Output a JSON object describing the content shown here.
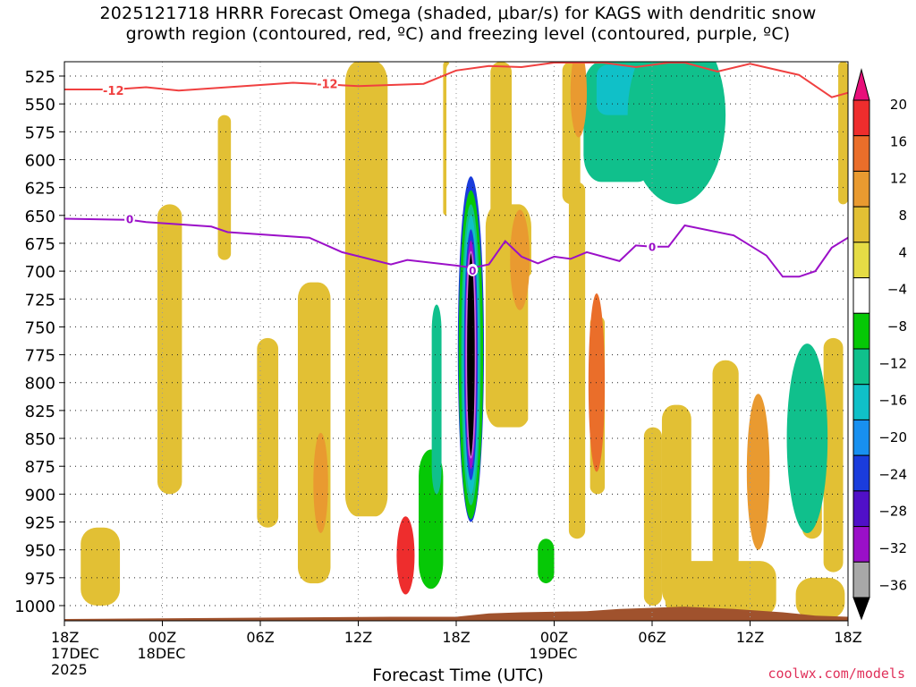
{
  "title_line1": "2025121718 HRRR Forecast Omega (shaded, μbar/s) for KAGS with dendritic snow",
  "title_line2": "growth region (contoured, red, ºC) and freezing level (contoured, purple, ºC)",
  "credit": "coolwx.com/models",
  "chart_data": {
    "type": "heatmap",
    "title": "2025121718 HRRR Forecast Omega (shaded, μbar/s) for KAGS",
    "xlabel": "Forecast Time (UTC)",
    "ylabel": "",
    "x_range_hours": [
      0,
      48
    ],
    "ylim": [
      1015,
      512
    ],
    "y_ticks": [
      525,
      550,
      575,
      600,
      625,
      650,
      675,
      700,
      725,
      750,
      775,
      800,
      825,
      850,
      875,
      900,
      925,
      950,
      975,
      1000
    ],
    "x_ticks": [
      {
        "hour": 0,
        "label": "18Z",
        "label2": "17DEC",
        "label3": "2025"
      },
      {
        "hour": 6,
        "label": "00Z",
        "label2": "18DEC"
      },
      {
        "hour": 12,
        "label": "06Z"
      },
      {
        "hour": 18,
        "label": "12Z"
      },
      {
        "hour": 24,
        "label": "18Z"
      },
      {
        "hour": 30,
        "label": "00Z",
        "label2": "19DEC"
      },
      {
        "hour": 36,
        "label": "06Z"
      },
      {
        "hour": 42,
        "label": "12Z"
      },
      {
        "hour": 48,
        "label": "18Z"
      }
    ],
    "colorbar": {
      "tick_labels": [
        "20",
        "16",
        "12",
        "8",
        "4",
        "−4",
        "−8",
        "−12",
        "−16",
        "−20",
        "−24",
        "−28",
        "−32",
        "−36"
      ],
      "colors": [
        "#e8107a",
        "#ee2d2d",
        "#ea6e2a",
        "#e99a30",
        "#e2c034",
        "#e5dc45",
        "#ffffff",
        "#06c806",
        "#10c08c",
        "#10c0c8",
        "#1890f0",
        "#1a3cdc",
        "#5010c8",
        "#9a10c8",
        "#a8a8a8",
        "#000000"
      ]
    },
    "ground_color": "#a0522d",
    "dgz_contour": {
      "label": "-12",
      "color": "#f04040",
      "points": [
        [
          0,
          537
        ],
        [
          3,
          537
        ],
        [
          5,
          535
        ],
        [
          7,
          538
        ],
        [
          10,
          535
        ],
        [
          14,
          531
        ],
        [
          18,
          534
        ],
        [
          22,
          532
        ],
        [
          24,
          520
        ],
        [
          26,
          516
        ],
        [
          28,
          517
        ],
        [
          30,
          513
        ],
        [
          33,
          513
        ],
        [
          35,
          517
        ],
        [
          37,
          513
        ],
        [
          38,
          513
        ],
        [
          40,
          521
        ],
        [
          42,
          514
        ],
        [
          45,
          524
        ],
        [
          47,
          544
        ],
        [
          48,
          540
        ]
      ]
    },
    "freezing_level": {
      "label": "0",
      "color": "#9b10c8",
      "points": [
        [
          0,
          653
        ],
        [
          4,
          654
        ],
        [
          5,
          656
        ],
        [
          9,
          660
        ],
        [
          10,
          665
        ],
        [
          15,
          670
        ],
        [
          17,
          683
        ],
        [
          20,
          694
        ],
        [
          21,
          690
        ],
        [
          24,
          695
        ],
        [
          25,
          697
        ],
        [
          26,
          694
        ],
        [
          27,
          673
        ],
        [
          28,
          687
        ],
        [
          29,
          693
        ],
        [
          30,
          687
        ],
        [
          31,
          689
        ],
        [
          32,
          683
        ],
        [
          34,
          691
        ],
        [
          35,
          677
        ],
        [
          36,
          678
        ],
        [
          37,
          678
        ],
        [
          38,
          659
        ],
        [
          41,
          668
        ],
        [
          43,
          686
        ],
        [
          44,
          705
        ],
        [
          45,
          705
        ],
        [
          46,
          700
        ],
        [
          47,
          679
        ],
        [
          48,
          670
        ]
      ]
    },
    "omega_regions": [
      {
        "center_hour": 24.9,
        "center_hpa": 790,
        "span_hours": 0.8,
        "span_hpa": 180,
        "value": -40
      },
      {
        "center_hour": 24.9,
        "center_hpa": 770,
        "span_hours": 1.6,
        "span_hpa": 310,
        "value": -24
      },
      {
        "center_hour": 20.9,
        "center_hpa": 955,
        "span_hours": 1.1,
        "span_hpa": 70,
        "value": 20
      },
      {
        "center_hour": 27.9,
        "center_hpa": 690,
        "span_hours": 1.2,
        "span_hpa": 90,
        "value": 12
      },
      {
        "center_hour": 32.6,
        "center_hpa": 800,
        "span_hours": 1.0,
        "span_hpa": 160,
        "value": 14
      },
      {
        "center_hour": 31.5,
        "center_hpa": 540,
        "span_hours": 1.0,
        "span_hpa": 80,
        "value": 10
      },
      {
        "center_hour": 42.5,
        "center_hpa": 880,
        "span_hours": 1.4,
        "span_hpa": 140,
        "value": 10
      },
      {
        "center_hour": 15.7,
        "center_hpa": 890,
        "span_hours": 0.9,
        "span_hpa": 90,
        "value": 10
      },
      {
        "center_hour": 37.5,
        "center_hpa": 560,
        "span_hours": 6.0,
        "span_hpa": 160,
        "value": -14
      },
      {
        "center_hour": 45.5,
        "center_hpa": 850,
        "span_hours": 2.5,
        "span_hpa": 170,
        "value": -12
      }
    ]
  }
}
